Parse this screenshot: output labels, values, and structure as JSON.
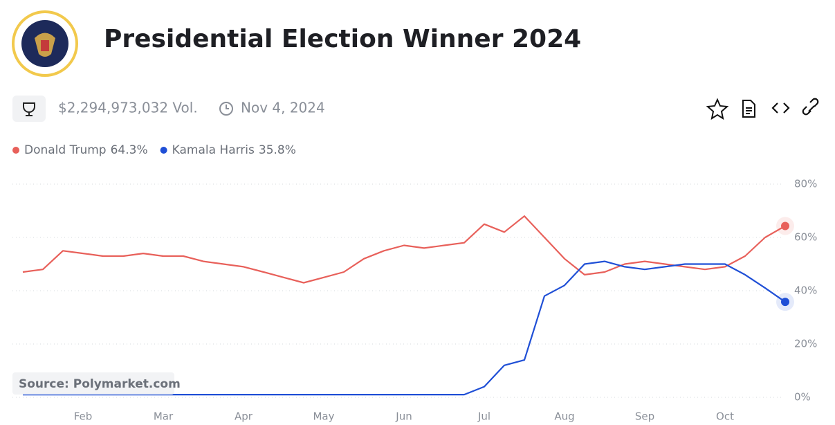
{
  "chart_data": {
    "type": "line",
    "title": "Presidential Election Winner 2024",
    "volume": "$2,294,973,032 Vol.",
    "date": "Nov 4, 2024",
    "source": "Source: Polymarket.com",
    "categories": [
      null,
      null,
      null,
      "Feb",
      null,
      null,
      null,
      "Mar",
      null,
      null,
      null,
      "Apr",
      null,
      null,
      null,
      "May",
      null,
      null,
      null,
      "Jun",
      null,
      null,
      null,
      "Jul",
      null,
      null,
      null,
      "Aug",
      null,
      null,
      null,
      "Sep",
      null,
      null,
      null,
      "Oct",
      null,
      null,
      null
    ],
    "series": [
      {
        "name": "Donald Trump",
        "color": "#e8605a",
        "values": [
          47,
          48,
          55,
          54,
          53,
          53,
          54,
          53,
          53,
          51,
          50,
          49,
          47,
          45,
          43,
          45,
          47,
          52,
          55,
          57,
          56,
          57,
          58,
          65,
          62,
          68,
          60,
          52,
          46,
          47,
          50,
          51,
          50,
          49,
          48,
          49,
          53,
          60,
          64.3
        ],
        "value_labels": [
          null,
          null,
          null,
          null,
          null,
          null,
          null,
          null,
          null,
          null,
          null,
          null,
          null,
          null,
          null,
          null,
          null,
          null,
          null,
          null,
          null,
          null,
          null,
          null,
          null,
          null,
          null,
          null,
          null,
          null,
          null,
          null,
          null,
          null,
          null,
          null,
          null,
          null,
          "64.3%"
        ]
      },
      {
        "name": "Kamala Harris",
        "color": "#1f4fd6",
        "values": [
          1,
          1,
          1,
          1,
          1,
          1,
          1,
          1,
          1,
          1,
          1,
          1,
          1,
          1,
          1,
          1,
          1,
          1,
          1,
          1,
          1,
          1,
          1,
          4,
          12,
          14,
          38,
          42,
          50,
          51,
          49,
          48,
          49,
          50,
          50,
          50,
          46,
          41,
          35.8
        ],
        "value_labels": [
          null,
          null,
          null,
          null,
          null,
          null,
          null,
          null,
          null,
          null,
          null,
          null,
          null,
          null,
          null,
          null,
          null,
          null,
          null,
          null,
          null,
          null,
          null,
          null,
          null,
          null,
          null,
          null,
          null,
          null,
          null,
          null,
          null,
          null,
          null,
          null,
          null,
          null,
          "35.8%"
        ]
      }
    ],
    "ylim": [
      0,
      80
    ],
    "yticks": [
      {
        "value": 0,
        "label": "0%"
      },
      {
        "value": 20,
        "label": "20%"
      },
      {
        "value": 40,
        "label": "40%"
      },
      {
        "value": 60,
        "label": "60%"
      },
      {
        "value": 80,
        "label": "80%"
      }
    ],
    "grid": true
  }
}
